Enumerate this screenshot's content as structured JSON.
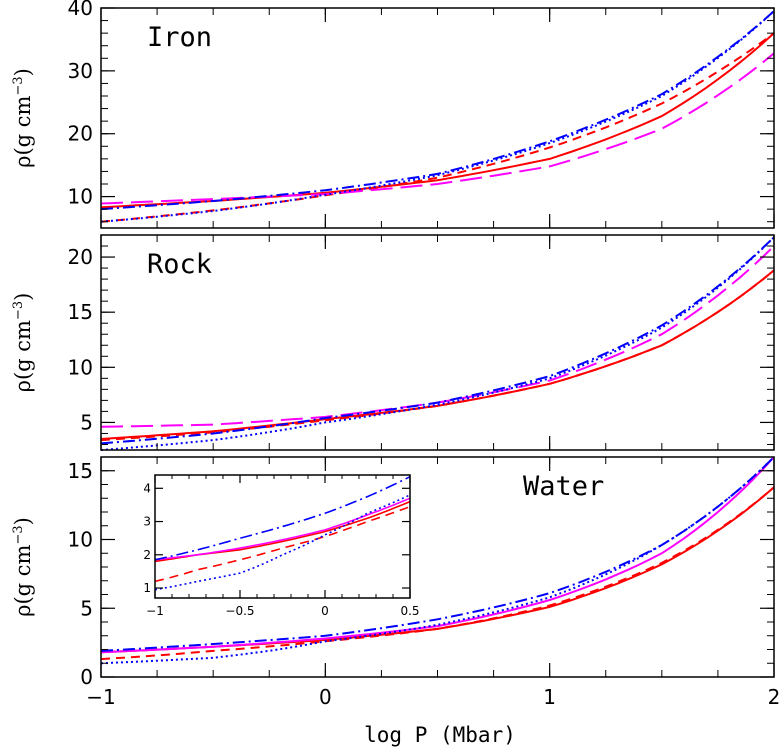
{
  "colors": {
    "red": "#ff0000",
    "magenta": "#ff00ff",
    "blue": "#0000ff",
    "axis": "#000000"
  },
  "chart_data": {
    "type": "line",
    "xlabel": "log P (Mbar)",
    "xlim": [
      -1,
      2
    ],
    "x_ticks": [
      -1,
      0,
      1,
      2
    ],
    "x_tick_labels": [
      "−1",
      "0",
      "1",
      "2"
    ],
    "panels": [
      {
        "label": "Iron",
        "ylabel_main": "ρ(g cm",
        "ylabel_exp": "−3",
        "ylabel_close": ")",
        "ylim": [
          5,
          40
        ],
        "y_ticks": [
          10,
          20,
          30,
          40
        ],
        "x": [
          -1,
          -0.5,
          0,
          0.5,
          1,
          1.5,
          2
        ],
        "series": [
          {
            "style": "solid",
            "color": "red",
            "values": [
              8.3,
              9.3,
              10.6,
              12.6,
              16.0,
              22.8,
              36.0
            ]
          },
          {
            "style": "dashed",
            "color": "red",
            "values": [
              6.0,
              7.8,
              10.2,
              13.0,
              17.8,
              24.8,
              36.0
            ]
          },
          {
            "style": "long-dashed",
            "color": "magenta",
            "values": [
              8.9,
              9.6,
              10.4,
              12.0,
              14.8,
              20.8,
              32.8
            ]
          },
          {
            "style": "dotted",
            "color": "blue",
            "values": [
              6.0,
              7.7,
              10.3,
              13.4,
              18.5,
              26.0,
              39.5
            ]
          },
          {
            "style": "dash-dot",
            "color": "blue",
            "values": [
              8.0,
              9.3,
              11.0,
              13.6,
              18.8,
              26.3,
              39.5
            ]
          }
        ]
      },
      {
        "label": "Rock",
        "ylabel_main": "ρ(g cm",
        "ylabel_exp": "−3",
        "ylabel_close": ")",
        "ylim": [
          2.5,
          22
        ],
        "y_ticks": [
          5,
          10,
          15,
          20
        ],
        "x": [
          -1,
          -0.5,
          0,
          0.5,
          1,
          1.5,
          2
        ],
        "series": [
          {
            "style": "solid",
            "color": "red",
            "values": [
              3.5,
              4.2,
              5.3,
              6.5,
              8.5,
              12.0,
              18.8
            ]
          },
          {
            "style": "dashed",
            "color": "red",
            "values": [
              3.4,
              4.1,
              5.2,
              6.5,
              8.5,
              12.0,
              18.8
            ]
          },
          {
            "style": "long-dashed",
            "color": "magenta",
            "values": [
              4.6,
              4.8,
              5.5,
              6.8,
              8.8,
              13.0,
              21.0
            ]
          },
          {
            "style": "dotted",
            "color": "blue",
            "values": [
              2.5,
              3.4,
              5.0,
              6.6,
              9.0,
              13.6,
              21.8
            ]
          },
          {
            "style": "dash-dot",
            "color": "blue",
            "values": [
              3.1,
              4.0,
              5.4,
              6.8,
              9.2,
              13.8,
              21.8
            ]
          }
        ]
      },
      {
        "label": "Water",
        "ylabel_main": "ρ(g cm",
        "ylabel_exp": "−3",
        "ylabel_close": ")",
        "ylim": [
          0,
          16
        ],
        "y_ticks": [
          0,
          5,
          10,
          15
        ],
        "x": [
          -1,
          -0.5,
          0,
          0.5,
          1,
          1.5,
          2
        ],
        "series": [
          {
            "style": "solid",
            "color": "red",
            "values": [
              1.8,
              2.2,
              2.7,
              3.5,
              5.1,
              8.2,
              13.8
            ]
          },
          {
            "style": "dashed",
            "color": "red",
            "values": [
              1.3,
              1.9,
              2.6,
              3.5,
              5.2,
              8.3,
              13.8
            ]
          },
          {
            "style": "solid",
            "color": "magenta",
            "values": [
              1.8,
              2.2,
              2.8,
              3.7,
              5.6,
              9.0,
              16.0
            ]
          },
          {
            "style": "dotted",
            "color": "blue",
            "values": [
              1.0,
              1.4,
              2.6,
              3.8,
              5.8,
              9.6,
              16.0
            ]
          },
          {
            "style": "dash-dot",
            "color": "blue",
            "values": [
              1.9,
              2.4,
              3.0,
              4.2,
              6.1,
              9.6,
              16.0
            ]
          }
        ],
        "inset": {
          "xlim": [
            -1,
            0.5
          ],
          "ylim": [
            0.7,
            4.4
          ],
          "x_ticks": [
            -1,
            -0.5,
            0,
            0.5
          ],
          "x_tick_labels": [
            "−1",
            "−0.5",
            "0",
            "0.5"
          ],
          "y_ticks": [
            1,
            2,
            3,
            4
          ],
          "x": [
            -1,
            -0.75,
            -0.5,
            -0.25,
            0,
            0.25,
            0.5
          ],
          "series": [
            {
              "style": "solid",
              "color": "red",
              "values": [
                1.8,
                2.0,
                2.15,
                2.4,
                2.7,
                3.1,
                3.6
              ]
            },
            {
              "style": "dashed",
              "color": "red",
              "values": [
                1.2,
                1.55,
                1.85,
                2.2,
                2.55,
                3.0,
                3.45
              ]
            },
            {
              "style": "solid",
              "color": "magenta",
              "values": [
                1.85,
                2.0,
                2.2,
                2.45,
                2.75,
                3.2,
                3.7
              ]
            },
            {
              "style": "dotted",
              "color": "blue",
              "values": [
                0.95,
                1.2,
                1.45,
                2.0,
                2.6,
                3.25,
                3.8
              ]
            },
            {
              "style": "dash-dot",
              "color": "blue",
              "values": [
                1.85,
                2.15,
                2.5,
                2.85,
                3.25,
                3.75,
                4.35
              ]
            }
          ]
        }
      }
    ]
  }
}
